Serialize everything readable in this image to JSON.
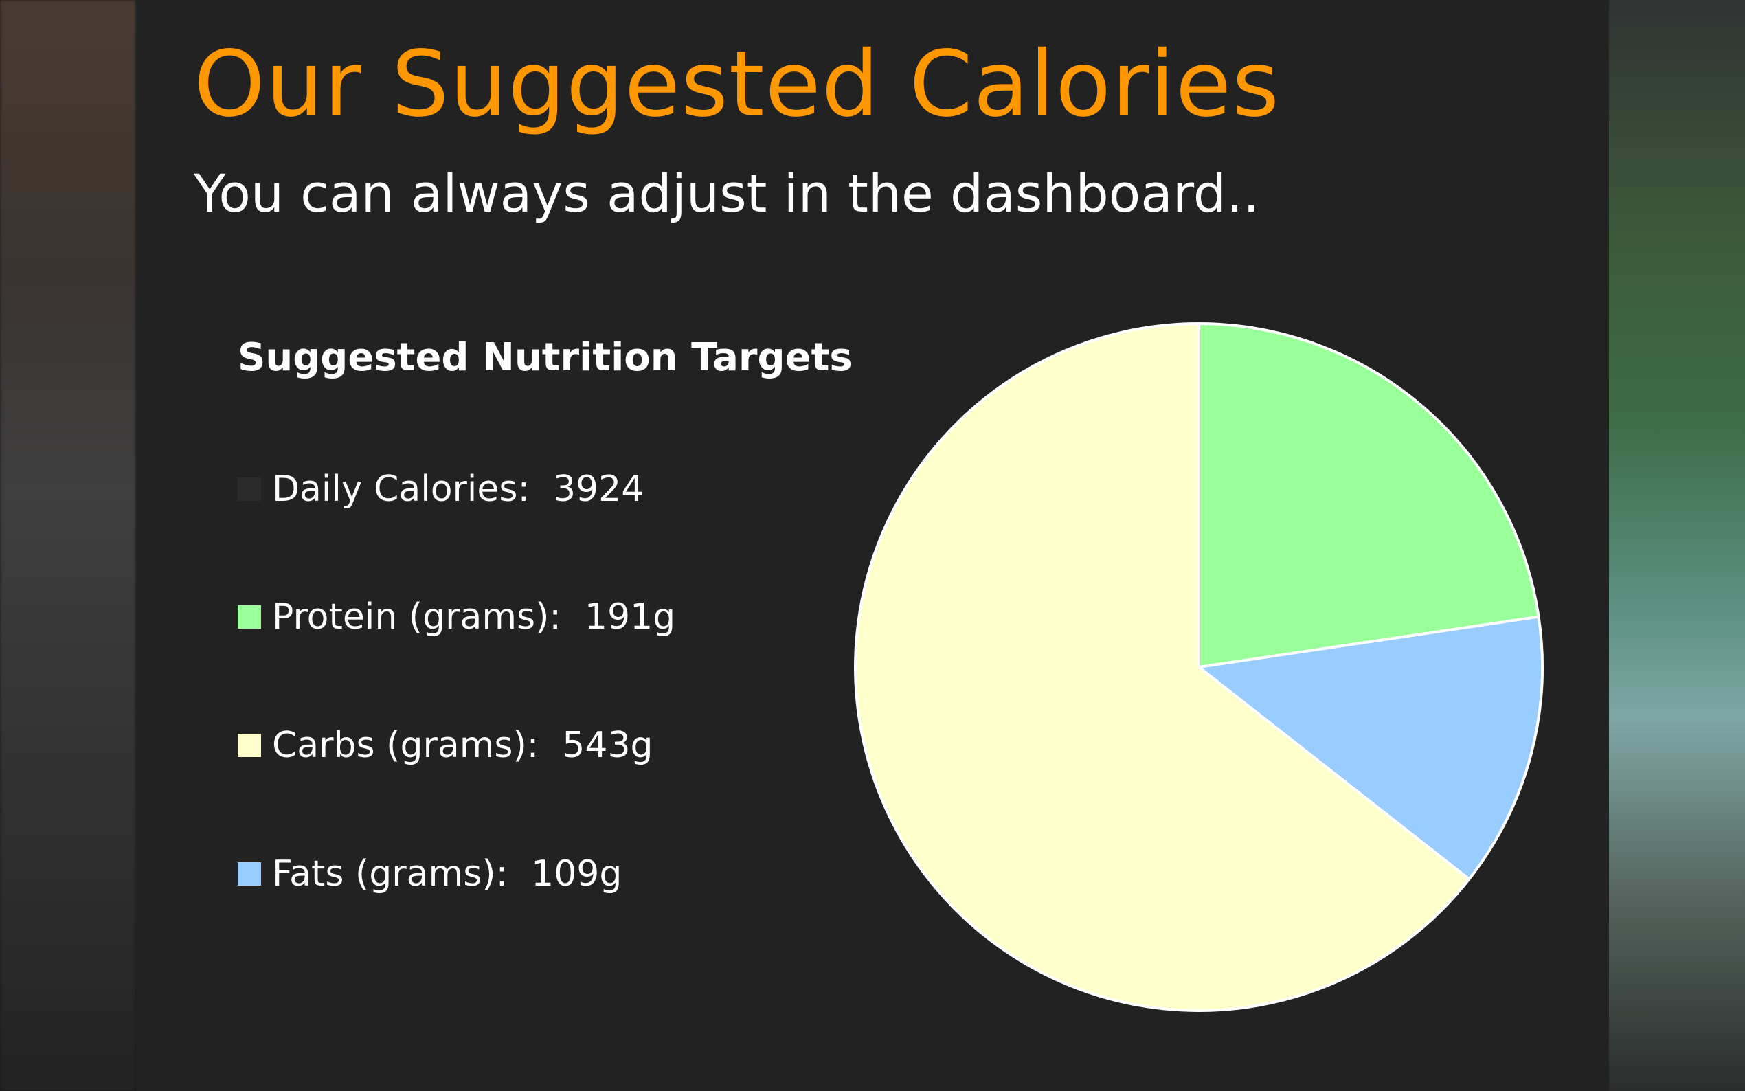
{
  "header": {
    "title": "Our Suggested Calories",
    "subtitle": "You can always adjust in the dashboard.."
  },
  "legend": {
    "heading": "Suggested Nutrition Targets",
    "items": [
      {
        "label": "Daily Calories:",
        "value": "3924",
        "color": "#2b2b2b"
      },
      {
        "label": "Protein (grams):",
        "value": "191g",
        "color": "#99ff99"
      },
      {
        "label": "Carbs (grams):",
        "value": "543g",
        "color": "#ffffcc"
      },
      {
        "label": "Fats (grams):",
        "value": "109g",
        "color": "#99ccff"
      }
    ]
  },
  "colors": {
    "title": "#ff9800",
    "panel_background": "#222222",
    "slice_border": "#ffffff"
  },
  "chart_data": {
    "type": "pie",
    "title": "",
    "start": "12 o'clock, clockwise",
    "slices": [
      {
        "name": "Protein (grams)",
        "value": 191,
        "color": "#99ff99"
      },
      {
        "name": "Fats (grams)",
        "value": 109,
        "color": "#99ccff"
      },
      {
        "name": "Carbs (grams)",
        "value": 543,
        "color": "#ffffcc"
      }
    ]
  }
}
